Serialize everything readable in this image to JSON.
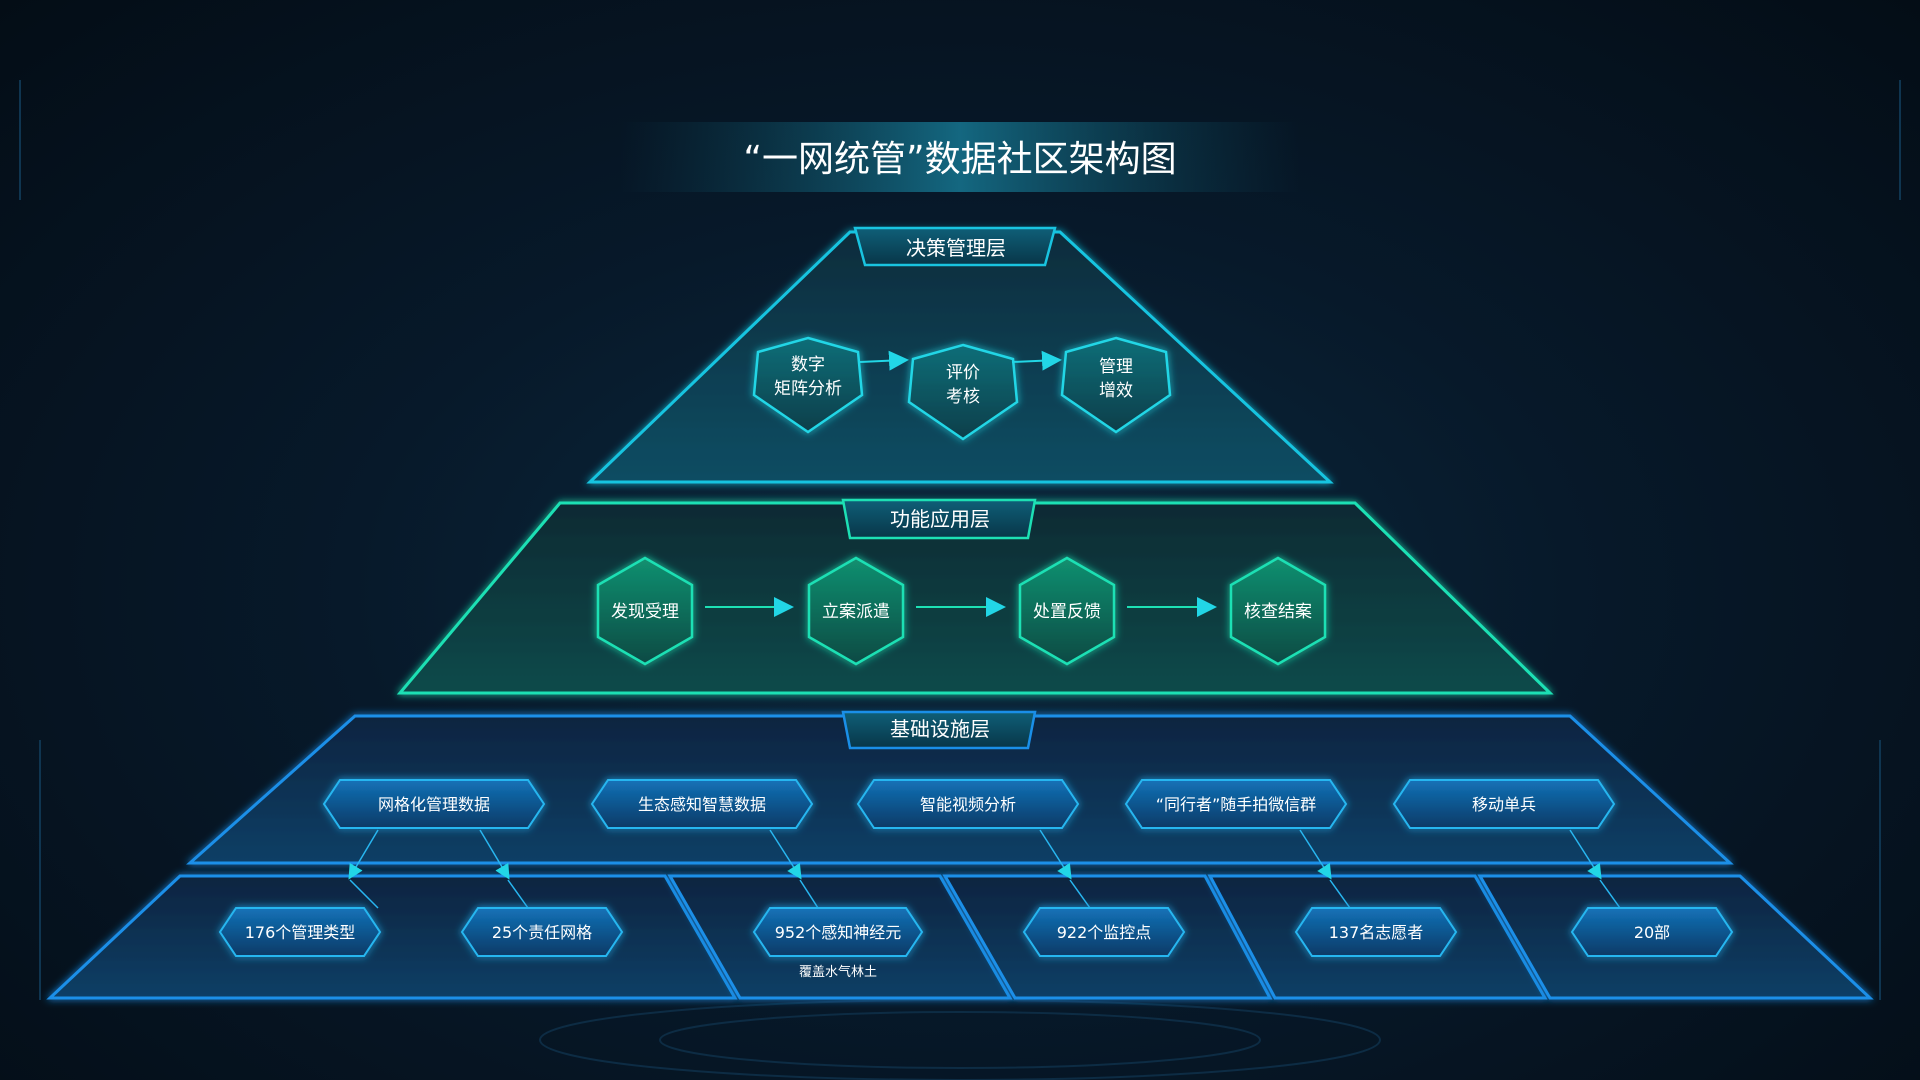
{
  "title": "“一网统管”数据社区架构图",
  "colors": {
    "bg": "#061522",
    "cyan": "#16c8e6",
    "teal": "#1de0b4",
    "blue": "#1a8fe8"
  },
  "layers": {
    "decision": {
      "label": "决策管理层",
      "nodes": [
        {
          "line1": "数字",
          "line2": "矩阵分析"
        },
        {
          "line1": "评价",
          "line2": "考核"
        },
        {
          "line1": "管理",
          "line2": "增效"
        }
      ]
    },
    "function": {
      "label": "功能应用层",
      "nodes": [
        "发现受理",
        "立案派遣",
        "处置反馈",
        "核查结案"
      ]
    },
    "infrastructure": {
      "label": "基础设施层",
      "sources": [
        "网格化管理数据",
        "生态感知智慧数据",
        "智能视频分析",
        "“同行者”随手拍微信群",
        "移动单兵"
      ],
      "stats": [
        "176个管理类型",
        "25个责任网格",
        "952个感知神经元",
        "922个监控点",
        "137名志愿者",
        "20部"
      ],
      "note": "覆盖水气林土"
    }
  }
}
